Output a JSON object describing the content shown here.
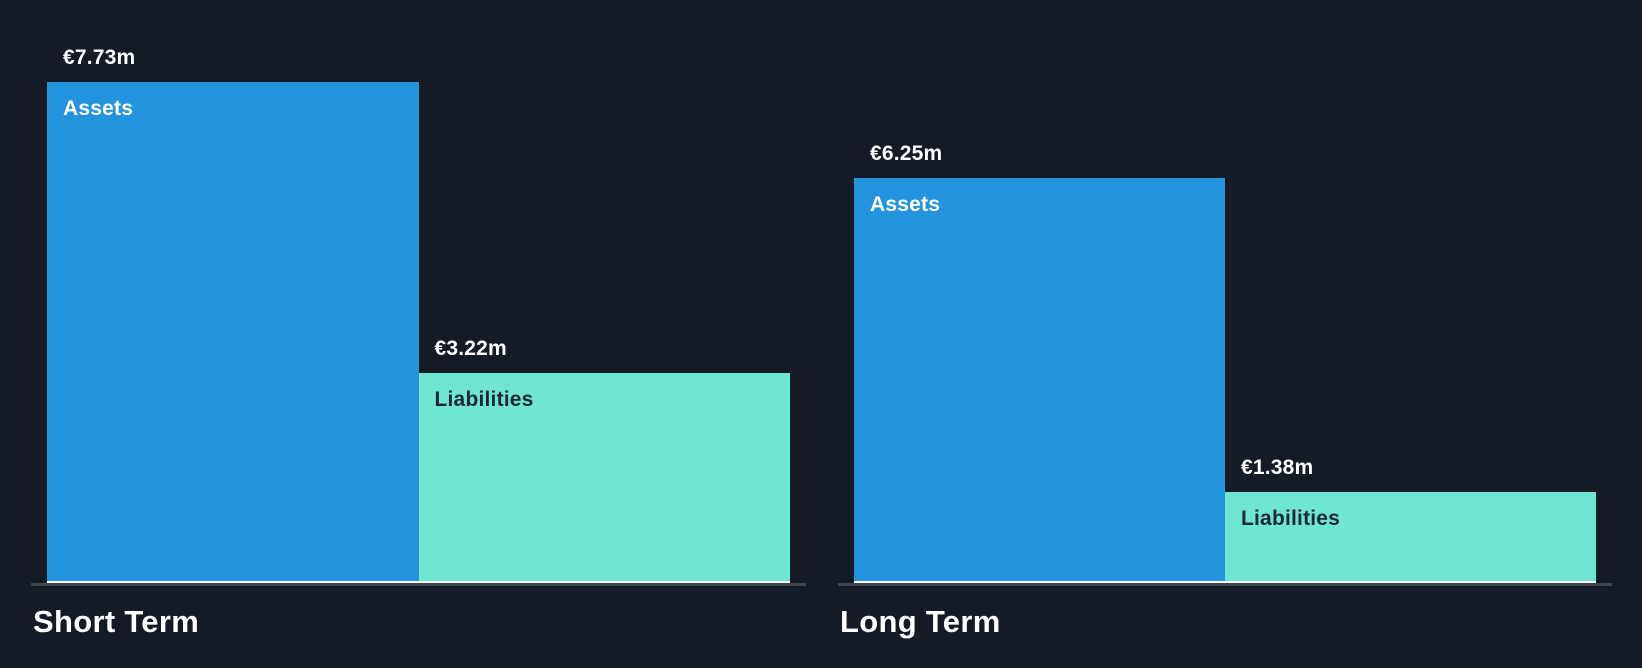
{
  "chart_data": {
    "type": "bar",
    "currency_symbol": "€",
    "unit": "m",
    "max_value": 7.73,
    "background": "#151B24",
    "axis": {
      "baseline_color": "#FFFFFF",
      "line_color": "#3F454D",
      "grid": false
    },
    "groups": [
      {
        "title": "Short Term",
        "bars": [
          {
            "name": "Assets",
            "label": "€7.73m",
            "value": 7.73,
            "color": "#2494DF",
            "label_color": "#FFFFFF"
          },
          {
            "name": "Liabilities",
            "label": "€3.22m",
            "value": 3.22,
            "color": "#6FE6D2",
            "label_color": "#1E2834"
          }
        ]
      },
      {
        "title": "Long Term",
        "bars": [
          {
            "name": "Assets",
            "label": "€6.25m",
            "value": 6.25,
            "color": "#2494DF",
            "label_color": "#FFFFFF"
          },
          {
            "name": "Liabilities",
            "label": "€1.38m",
            "value": 1.38,
            "color": "#6FE6D2",
            "label_color": "#1E2834"
          }
        ]
      }
    ]
  }
}
